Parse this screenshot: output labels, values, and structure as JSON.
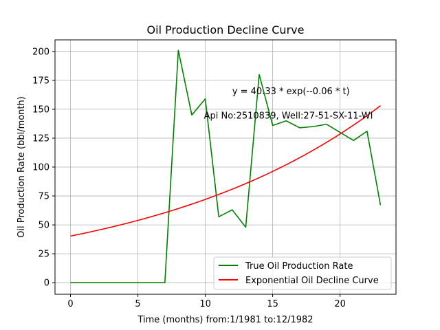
{
  "chart_data": {
    "type": "line",
    "title": "Oil Production Decline Curve",
    "xlabel": "Time (months) from:1/1981 to:12/1982",
    "ylabel": "Oil Production Rate (bbl/month)",
    "xlim": [
      -1.15,
      24.15
    ],
    "ylim": [
      -10,
      210
    ],
    "xticks": [
      0,
      5,
      10,
      15,
      20
    ],
    "yticks": [
      0,
      25,
      50,
      75,
      100,
      125,
      150,
      175,
      200
    ],
    "grid": true,
    "legend_position": "bottom-right",
    "annotations": [
      {
        "text": "y = 40.33 * exp(--0.06 * t)",
        "x": 12,
        "y": 163
      },
      {
        "text": "Api No:2510839, Well:27-51-SX-11-WI",
        "x": 9.9,
        "y": 142
      }
    ],
    "series": [
      {
        "name": "True Oil Production Rate",
        "color": "#008000",
        "x": [
          0,
          1,
          2,
          3,
          4,
          5,
          6,
          7,
          8,
          9,
          10,
          11,
          12,
          13,
          14,
          15,
          16,
          17,
          18,
          19,
          20,
          21,
          22,
          23
        ],
        "y": [
          0,
          0,
          0,
          0,
          0,
          0,
          0,
          0,
          201,
          145,
          159,
          57,
          63,
          48,
          180,
          136,
          140,
          134,
          135,
          137,
          130,
          123,
          131,
          67
        ]
      },
      {
        "name": "Exponential Oil Decline Curve",
        "color": "#ff0000",
        "curve": {
          "a": 40.33,
          "b": 0.058
        },
        "x_range": [
          0,
          23
        ]
      }
    ]
  }
}
